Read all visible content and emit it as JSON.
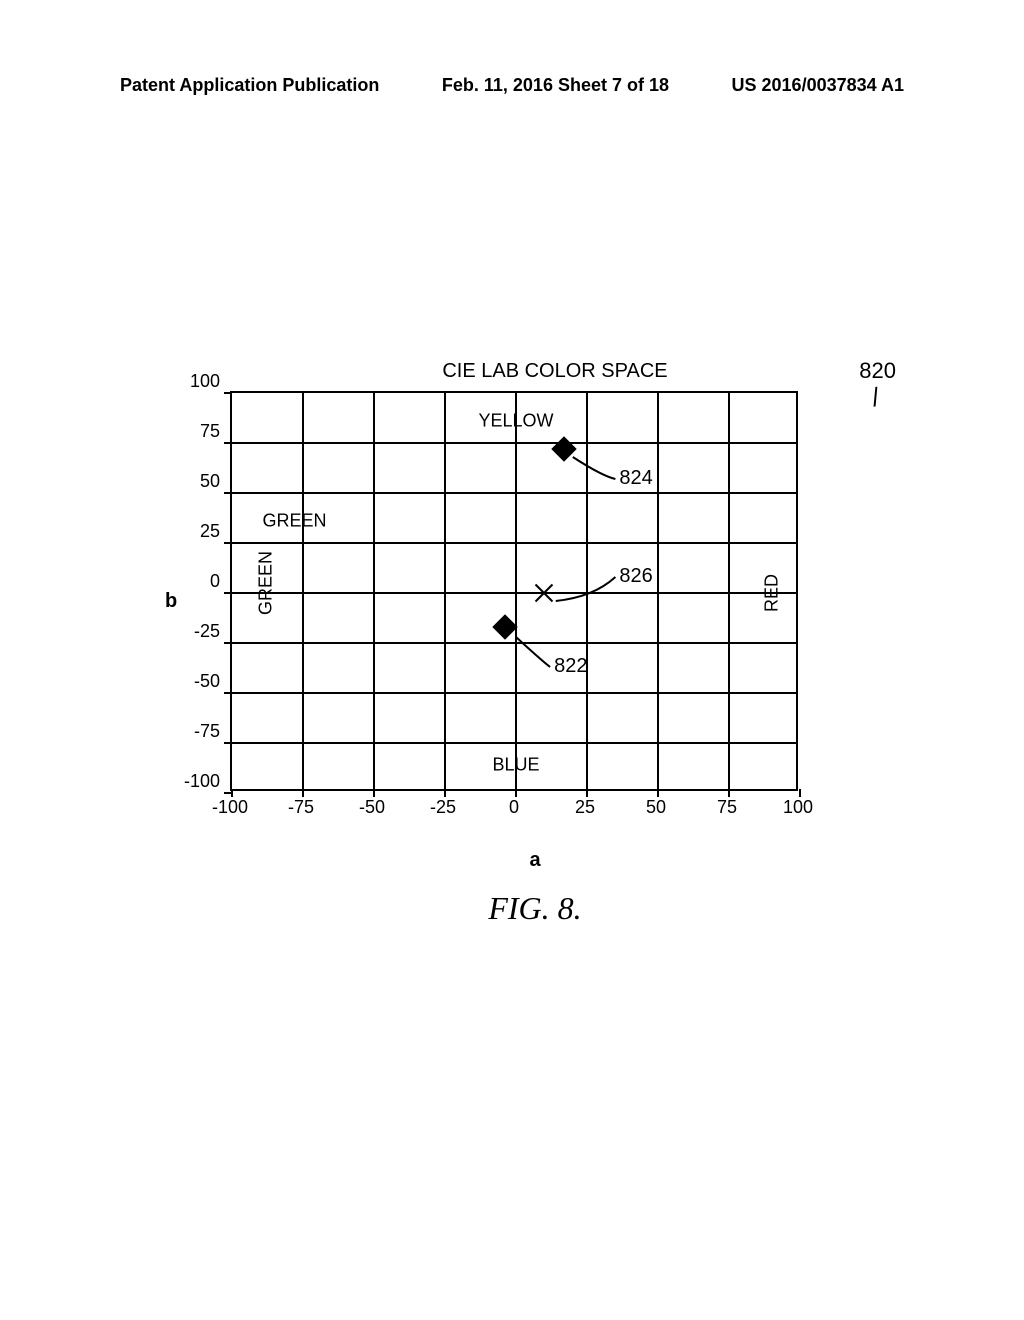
{
  "header": {
    "left": "Patent Application Publication",
    "center": "Feb. 11, 2016  Sheet 7 of 18",
    "right": "US 2016/0037834 A1"
  },
  "chart": {
    "type": "scatter",
    "title": "CIE LAB COLOR SPACE",
    "xlabel": "a",
    "ylabel": "b",
    "figure_label": "FIG. 8.",
    "xlim": [
      -100,
      100
    ],
    "ylim": [
      -100,
      100
    ],
    "xtick_step": 25,
    "ytick_step": 25,
    "xticks": [
      -100,
      -75,
      -50,
      -25,
      0,
      25,
      50,
      75,
      100
    ],
    "yticks": [
      100,
      75,
      50,
      25,
      0,
      -25,
      -50,
      -75,
      -100
    ],
    "background_color": "#ffffff",
    "grid_color": "#000000",
    "axis_labels": {
      "top": "YELLOW",
      "bottom": "BLUE",
      "left_inner": "GREEN",
      "left_rotated": "GREEN",
      "right_rotated": "RED"
    },
    "points": [
      {
        "id": "824",
        "marker": "diamond",
        "a": 17,
        "b": 72,
        "color": "#000000"
      },
      {
        "id": "826",
        "marker": "x",
        "a": 10,
        "b": 0,
        "color": "#000000"
      },
      {
        "id": "822",
        "marker": "diamond",
        "a": -4,
        "b": -17,
        "color": "#000000"
      }
    ],
    "callouts": [
      {
        "ref": "824",
        "text": "824",
        "from_a": 20,
        "from_b": 68,
        "to_a": 35,
        "to_b": 57
      },
      {
        "ref": "826",
        "text": "826",
        "from_a": 14,
        "from_b": -4,
        "to_a": 35,
        "to_b": 8
      },
      {
        "ref": "822",
        "text": "822",
        "from_a": 0,
        "from_b": -22,
        "to_a": 12,
        "to_b": -37
      }
    ],
    "ref_top_right": "820"
  }
}
